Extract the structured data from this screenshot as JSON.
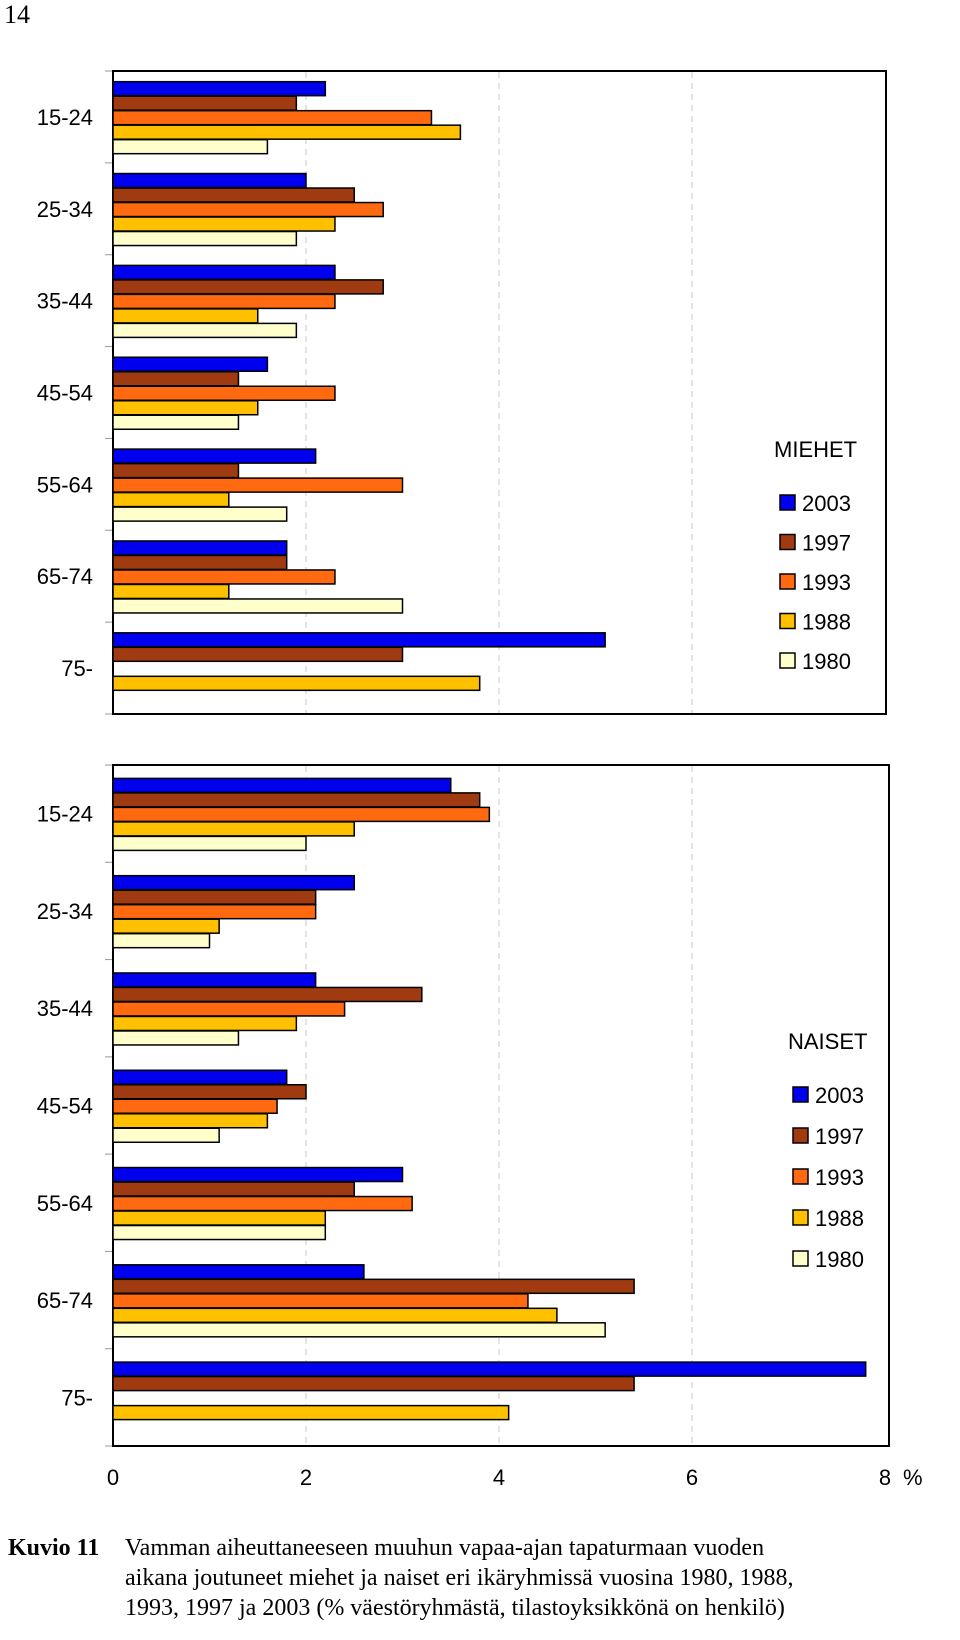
{
  "page_number": "14",
  "colors": {
    "2003": "#0000ee",
    "1997": "#a03a10",
    "1993": "#ff6a10",
    "1988": "#ffc000",
    "1980": "#ffffcc"
  },
  "chart_data": [
    {
      "type": "bar",
      "orientation": "horizontal",
      "title": "MIEHET",
      "categories": [
        "15-24",
        "25-34",
        "35-44",
        "45-54",
        "55-64",
        "65-74",
        "75-"
      ],
      "series": [
        {
          "name": "2003",
          "values": [
            2.2,
            2.0,
            2.3,
            1.6,
            2.1,
            1.8,
            5.1
          ]
        },
        {
          "name": "1997",
          "values": [
            1.9,
            2.5,
            2.8,
            1.3,
            1.3,
            1.8,
            3.0
          ]
        },
        {
          "name": "1993",
          "values": [
            3.3,
            2.8,
            2.3,
            2.3,
            3.0,
            2.3,
            null
          ]
        },
        {
          "name": "1988",
          "values": [
            3.6,
            2.3,
            1.5,
            1.5,
            1.2,
            1.2,
            3.8
          ]
        },
        {
          "name": "1980",
          "values": [
            1.6,
            1.9,
            1.9,
            1.3,
            1.8,
            3.0,
            null
          ]
        }
      ],
      "xlim": [
        0,
        8
      ],
      "legend": "right"
    },
    {
      "type": "bar",
      "orientation": "horizontal",
      "title": "NAISET",
      "categories": [
        "15-24",
        "25-34",
        "35-44",
        "45-54",
        "55-64",
        "65-74",
        "75-"
      ],
      "series": [
        {
          "name": "2003",
          "values": [
            3.5,
            2.5,
            2.1,
            1.8,
            3.0,
            2.6,
            7.8
          ]
        },
        {
          "name": "1997",
          "values": [
            3.8,
            2.1,
            3.2,
            2.0,
            2.5,
            5.4,
            5.4
          ]
        },
        {
          "name": "1993",
          "values": [
            3.9,
            2.1,
            2.4,
            1.7,
            3.1,
            4.3,
            null
          ]
        },
        {
          "name": "1988",
          "values": [
            2.5,
            1.1,
            1.9,
            1.6,
            2.2,
            4.6,
            4.1
          ]
        },
        {
          "name": "1980",
          "values": [
            2.0,
            1.0,
            1.3,
            1.1,
            2.2,
            5.1,
            null
          ]
        }
      ],
      "xlim": [
        0,
        8
      ],
      "xticks": [
        "0",
        "2",
        "4",
        "6",
        "8"
      ],
      "xunit": "%",
      "legend": "right"
    }
  ],
  "caption": {
    "label": "Kuvio 11",
    "line1": "Vamman aiheuttaneeseen muuhun vapaa-ajan tapaturmaan vuoden",
    "line2": "aikana joutuneet miehet ja naiset eri ikäryhmissä vuosina 1980, 1988,",
    "line3": "1993, 1997 ja 2003 (% väestöryhmästä, tilastoyksikkönä on henkilö)"
  }
}
